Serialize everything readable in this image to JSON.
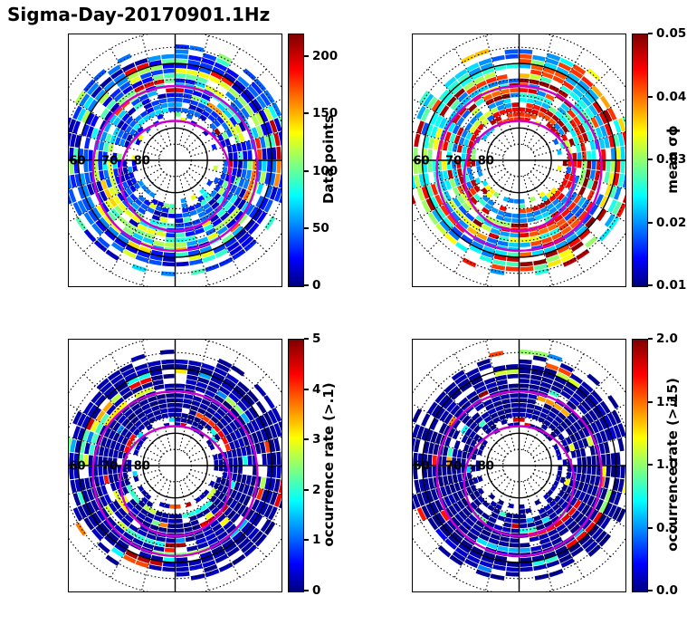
{
  "title": "Sigma-Day-20170901.1Hz",
  "chart_data": [
    {
      "type": "heatmap",
      "projection": "polar-latitude-dial",
      "position": "top-left",
      "lat_ring_labels": [
        "60",
        "70",
        "80"
      ],
      "lat_ring_values": [
        60,
        70,
        80
      ],
      "grid": {
        "dotted_circles_lat": [
          50,
          55,
          65,
          70,
          75,
          85
        ],
        "solid_circles_lat": [
          60,
          80
        ],
        "spoke_step_deg": 15,
        "crosshair": true
      },
      "overlay_rings": {
        "color": "#cc00cc",
        "rings": [
          {
            "boundary_lat": 64.5,
            "offset_deg": 2.5
          },
          {
            "boundary_lat": 73.0,
            "offset_deg": 4.8
          }
        ]
      },
      "data_annulus_lat_range": [
        55,
        78
      ],
      "colorbar": {
        "label": "Data points",
        "colormap": "jet",
        "vmin": 0,
        "vmax": 220,
        "ticks": [
          {
            "value": 0,
            "label": "0"
          },
          {
            "value": 50,
            "label": "50"
          },
          {
            "value": 100,
            "label": "100"
          },
          {
            "value": 150,
            "label": "150"
          },
          {
            "value": 200,
            "label": "200"
          }
        ]
      },
      "seed": 101,
      "value_distribution": {
        "fill": 0.9,
        "persist": 0.45,
        "low": [
          0.04,
          0.28
        ],
        "midProb": 0.22,
        "mid": [
          0.3,
          0.62
        ],
        "highProb": 0.05,
        "high": [
          0.65,
          1.0
        ],
        "ringBoost": {
          "latRange": [
            62,
            70
          ],
          "midProbAdd": 0.3
        }
      }
    },
    {
      "type": "heatmap",
      "projection": "polar-latitude-dial",
      "position": "top-right",
      "lat_ring_labels": [
        "60",
        "70",
        "80"
      ],
      "lat_ring_values": [
        60,
        70,
        80
      ],
      "grid": {
        "dotted_circles_lat": [
          50,
          55,
          65,
          70,
          75,
          85
        ],
        "solid_circles_lat": [
          60,
          80
        ],
        "spoke_step_deg": 15,
        "crosshair": true
      },
      "overlay_rings": {
        "color": "#cc00cc",
        "rings": [
          {
            "boundary_lat": 64.5,
            "offset_deg": 2.5
          },
          {
            "boundary_lat": 73.0,
            "offset_deg": 4.8
          }
        ]
      },
      "data_annulus_lat_range": [
        55,
        78
      ],
      "colorbar": {
        "label": "mean σϕ",
        "colormap": "jet",
        "vmin": 0.01,
        "vmax": 0.05,
        "ticks": [
          {
            "value": 0.01,
            "label": "0.01"
          },
          {
            "value": 0.02,
            "label": "0.02"
          },
          {
            "value": 0.03,
            "label": "0.03"
          },
          {
            "value": 0.04,
            "label": "0.04"
          },
          {
            "value": 0.05,
            "label": "0.05"
          }
        ]
      },
      "seed": 202,
      "value_distribution": {
        "fill": 0.87,
        "persist": 0.55,
        "low": [
          0.2,
          0.45
        ],
        "midProb": 0.18,
        "mid": [
          0.45,
          0.72
        ],
        "highProb": 0.33,
        "high": [
          0.78,
          1.0
        ],
        "ringBoost": null
      }
    },
    {
      "type": "heatmap",
      "projection": "polar-latitude-dial",
      "position": "bottom-left",
      "lat_ring_labels": [
        "60",
        "70",
        "80"
      ],
      "lat_ring_values": [
        60,
        70,
        80
      ],
      "grid": {
        "dotted_circles_lat": [
          50,
          55,
          65,
          70,
          75,
          85
        ],
        "solid_circles_lat": [
          60,
          80
        ],
        "spoke_step_deg": 15,
        "crosshair": true
      },
      "overlay_rings": {
        "color": "#cc00cc",
        "rings": [
          {
            "boundary_lat": 64.5,
            "offset_deg": 2.5
          },
          {
            "boundary_lat": 73.0,
            "offset_deg": 4.8
          }
        ]
      },
      "data_annulus_lat_range": [
        55,
        78
      ],
      "colorbar": {
        "label": "occurrence rate (>.1)",
        "colormap": "jet",
        "vmin": 0,
        "vmax": 5,
        "ticks": [
          {
            "value": 0,
            "label": "0"
          },
          {
            "value": 1,
            "label": "1"
          },
          {
            "value": 2,
            "label": "2"
          },
          {
            "value": 3,
            "label": "3"
          },
          {
            "value": 4,
            "label": "4"
          },
          {
            "value": 5,
            "label": "5"
          }
        ]
      },
      "seed": 303,
      "value_distribution": {
        "fill": 0.93,
        "persist": 0.5,
        "low": [
          0.0,
          0.07
        ],
        "midProb": 0.1,
        "mid": [
          0.25,
          0.65
        ],
        "highProb": 0.07,
        "high": [
          0.7,
          1.0
        ],
        "ringBoost": {
          "latRange": [
            60,
            68
          ],
          "midProbAdd": 0.08
        }
      }
    },
    {
      "type": "heatmap",
      "projection": "polar-latitude-dial",
      "position": "bottom-right",
      "lat_ring_labels": [
        "60",
        "70",
        "80"
      ],
      "lat_ring_values": [
        60,
        70,
        80
      ],
      "grid": {
        "dotted_circles_lat": [
          50,
          55,
          65,
          70,
          75,
          85
        ],
        "solid_circles_lat": [
          60,
          80
        ],
        "spoke_step_deg": 15,
        "crosshair": true
      },
      "overlay_rings": {
        "color": "#cc00cc",
        "rings": [
          {
            "boundary_lat": 64.5,
            "offset_deg": 2.5
          },
          {
            "boundary_lat": 73.0,
            "offset_deg": 4.8
          }
        ]
      },
      "data_annulus_lat_range": [
        55,
        78
      ],
      "colorbar": {
        "label": "occurrence rate (>.15)",
        "colormap": "jet",
        "vmin": 0.0,
        "vmax": 2.0,
        "ticks": [
          {
            "value": 0.0,
            "label": "0.0"
          },
          {
            "value": 0.5,
            "label": "0.5"
          },
          {
            "value": 1.0,
            "label": "1.0"
          },
          {
            "value": 1.5,
            "label": "1.5"
          },
          {
            "value": 2.0,
            "label": "2.0"
          }
        ]
      },
      "seed": 404,
      "value_distribution": {
        "fill": 0.93,
        "persist": 0.5,
        "low": [
          0.0,
          0.05
        ],
        "midProb": 0.06,
        "mid": [
          0.25,
          0.65
        ],
        "highProb": 0.04,
        "high": [
          0.7,
          1.0
        ],
        "ringBoost": null
      }
    }
  ]
}
